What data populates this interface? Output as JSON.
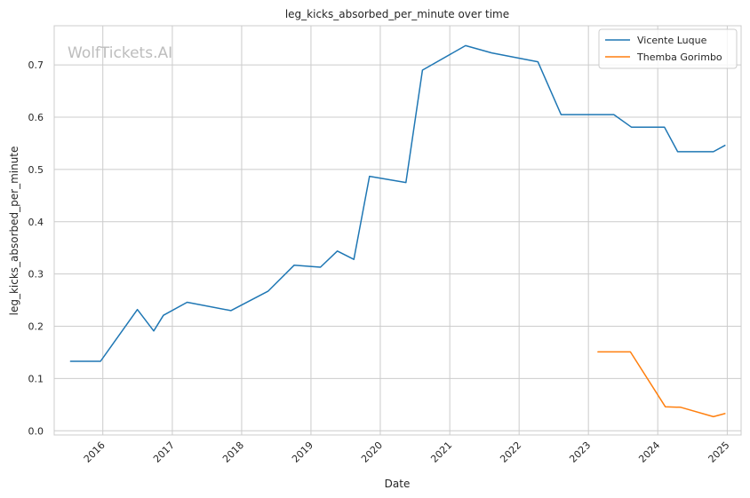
{
  "chart_data": {
    "type": "line",
    "title": "leg_kicks_absorbed_per_minute over time",
    "xlabel": "Date",
    "ylabel": "leg_kicks_absorbed_per_minute",
    "watermark": "WolfTickets.AI",
    "x_ticks": [
      "2016",
      "2017",
      "2018",
      "2019",
      "2020",
      "2021",
      "2022",
      "2023",
      "2024",
      "2025"
    ],
    "y_ticks": [
      "0.0",
      "0.1",
      "0.2",
      "0.3",
      "0.4",
      "0.5",
      "0.6",
      "0.7"
    ],
    "xlim": [
      "2015-04-20",
      "2025-03-15"
    ],
    "ylim": [
      -0.008,
      0.775
    ],
    "grid": true,
    "legend_position": "top-right",
    "series": [
      {
        "name": "Vicente Luque",
        "color": "#1f77b4",
        "points": [
          {
            "x": "2015-07-15",
            "y": 0.133
          },
          {
            "x": "2015-12-20",
            "y": 0.133
          },
          {
            "x": "2016-07-01",
            "y": 0.232
          },
          {
            "x": "2016-09-25",
            "y": 0.191
          },
          {
            "x": "2016-11-15",
            "y": 0.221
          },
          {
            "x": "2017-03-20",
            "y": 0.246
          },
          {
            "x": "2017-11-05",
            "y": 0.23
          },
          {
            "x": "2018-05-20",
            "y": 0.267
          },
          {
            "x": "2018-10-05",
            "y": 0.317
          },
          {
            "x": "2019-02-20",
            "y": 0.313
          },
          {
            "x": "2019-05-20",
            "y": 0.344
          },
          {
            "x": "2019-08-15",
            "y": 0.328
          },
          {
            "x": "2019-11-05",
            "y": 0.487
          },
          {
            "x": "2020-05-15",
            "y": 0.475
          },
          {
            "x": "2020-08-10",
            "y": 0.69
          },
          {
            "x": "2021-03-25",
            "y": 0.737
          },
          {
            "x": "2021-08-10",
            "y": 0.723
          },
          {
            "x": "2022-04-10",
            "y": 0.706
          },
          {
            "x": "2022-08-10",
            "y": 0.605
          },
          {
            "x": "2023-05-15",
            "y": 0.605
          },
          {
            "x": "2023-08-15",
            "y": 0.581
          },
          {
            "x": "2024-02-05",
            "y": 0.581
          },
          {
            "x": "2024-04-15",
            "y": 0.534
          },
          {
            "x": "2024-10-20",
            "y": 0.534
          },
          {
            "x": "2024-12-20",
            "y": 0.546
          }
        ]
      },
      {
        "name": "Themba Gorimbo",
        "color": "#ff7f0e",
        "points": [
          {
            "x": "2023-02-20",
            "y": 0.151
          },
          {
            "x": "2023-08-10",
            "y": 0.151
          },
          {
            "x": "2024-02-10",
            "y": 0.046
          },
          {
            "x": "2024-05-01",
            "y": 0.045
          },
          {
            "x": "2024-10-20",
            "y": 0.027
          },
          {
            "x": "2024-12-20",
            "y": 0.033
          }
        ]
      }
    ]
  }
}
